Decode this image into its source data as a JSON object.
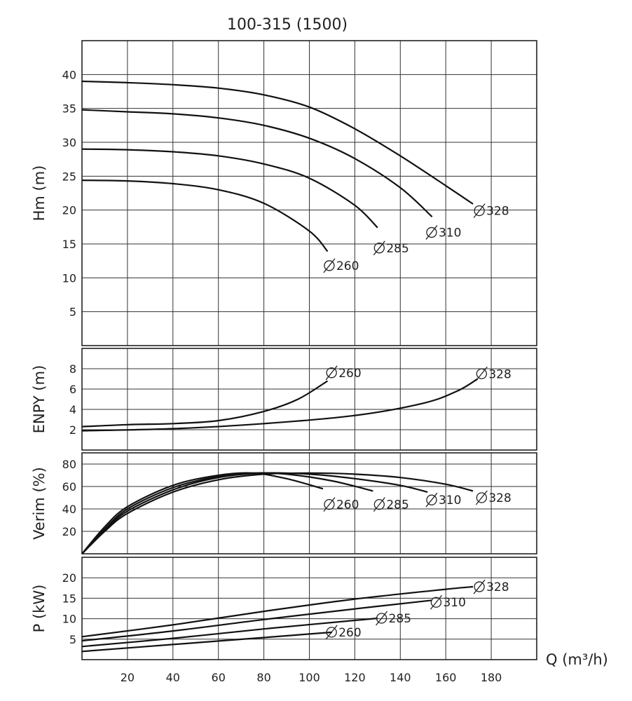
{
  "chart_data": {
    "title": "100-315 (1500)",
    "x_axis": {
      "label": "Q (m³/h)",
      "range": [
        0,
        200
      ],
      "ticks": [
        20,
        40,
        60,
        80,
        100,
        120,
        140,
        160,
        180
      ]
    },
    "panels": [
      {
        "id": "head",
        "type": "line",
        "ylabel": "Hm (m)",
        "ylim": [
          0,
          45
        ],
        "yticks": [
          5,
          10,
          15,
          20,
          25,
          30,
          35,
          40
        ],
        "series": [
          {
            "name": "Ø328",
            "points": [
              [
                0,
                39.0
              ],
              [
                20,
                38.8
              ],
              [
                40,
                38.5
              ],
              [
                60,
                38.0
              ],
              [
                80,
                37.0
              ],
              [
                100,
                35.2
              ],
              [
                120,
                32.0
              ],
              [
                140,
                28.0
              ],
              [
                160,
                23.6
              ],
              [
                172,
                20.9
              ]
            ]
          },
          {
            "name": "Ø310",
            "points": [
              [
                0,
                34.8
              ],
              [
                20,
                34.5
              ],
              [
                40,
                34.2
              ],
              [
                60,
                33.6
              ],
              [
                80,
                32.5
              ],
              [
                100,
                30.6
              ],
              [
                120,
                27.6
              ],
              [
                140,
                23.3
              ],
              [
                154,
                19.0
              ]
            ]
          },
          {
            "name": "Ø285",
            "points": [
              [
                0,
                29.0
              ],
              [
                20,
                28.9
              ],
              [
                40,
                28.6
              ],
              [
                60,
                28.0
              ],
              [
                80,
                26.8
              ],
              [
                100,
                24.7
              ],
              [
                120,
                20.7
              ],
              [
                130,
                17.4
              ]
            ]
          },
          {
            "name": "Ø260",
            "points": [
              [
                0,
                24.4
              ],
              [
                20,
                24.3
              ],
              [
                40,
                23.9
              ],
              [
                60,
                23.0
              ],
              [
                80,
                21.0
              ],
              [
                100,
                16.9
              ],
              [
                108,
                13.9
              ]
            ]
          }
        ],
        "labels": [
          {
            "text": "328",
            "x": 176,
            "y": 19.9
          },
          {
            "text": "310",
            "x": 155,
            "y": 16.7
          },
          {
            "text": "285",
            "x": 132,
            "y": 14.4
          },
          {
            "text": "260",
            "x": 110,
            "y": 11.8
          }
        ]
      },
      {
        "id": "npsh",
        "type": "line",
        "ylabel": "ENPY (m)",
        "ylim": [
          0,
          10
        ],
        "yticks": [
          2,
          4,
          6,
          8
        ],
        "series": [
          {
            "name": "Ø260",
            "points": [
              [
                0,
                2.3
              ],
              [
                20,
                2.5
              ],
              [
                40,
                2.6
              ],
              [
                60,
                2.9
              ],
              [
                80,
                3.8
              ],
              [
                95,
                5.0
              ],
              [
                108,
                6.8
              ]
            ]
          },
          {
            "name": "Ø328",
            "points": [
              [
                0,
                1.9
              ],
              [
                40,
                2.1
              ],
              [
                80,
                2.6
              ],
              [
                120,
                3.4
              ],
              [
                150,
                4.6
              ],
              [
                165,
                5.8
              ],
              [
                174,
                7.0
              ]
            ]
          }
        ],
        "labels": [
          {
            "text": "260",
            "x": 111,
            "y": 7.6
          },
          {
            "text": "328",
            "x": 177,
            "y": 7.5
          }
        ]
      },
      {
        "id": "efficiency",
        "type": "line",
        "ylabel": "Verim (%)",
        "ylim": [
          0,
          90
        ],
        "yticks": [
          20,
          40,
          60,
          80
        ],
        "series": [
          {
            "name": "Ø328",
            "points": [
              [
                0,
                0
              ],
              [
                10,
                20
              ],
              [
                20,
                36
              ],
              [
                40,
                55
              ],
              [
                60,
                66
              ],
              [
                80,
                71
              ],
              [
                100,
                72
              ],
              [
                120,
                71
              ],
              [
                140,
                68
              ],
              [
                160,
                62
              ],
              [
                172,
                56
              ]
            ]
          },
          {
            "name": "Ø310",
            "points": [
              [
                0,
                0
              ],
              [
                10,
                21
              ],
              [
                20,
                38
              ],
              [
                40,
                57
              ],
              [
                60,
                68
              ],
              [
                80,
                72
              ],
              [
                100,
                71
              ],
              [
                120,
                67
              ],
              [
                140,
                61
              ],
              [
                152,
                55
              ]
            ]
          },
          {
            "name": "Ø285",
            "points": [
              [
                0,
                0
              ],
              [
                10,
                22
              ],
              [
                20,
                40
              ],
              [
                40,
                59
              ],
              [
                60,
                69
              ],
              [
                75,
                72
              ],
              [
                90,
                71
              ],
              [
                110,
                65
              ],
              [
                128,
                56
              ]
            ]
          },
          {
            "name": "Ø260",
            "points": [
              [
                0,
                0
              ],
              [
                10,
                24
              ],
              [
                20,
                42
              ],
              [
                40,
                61
              ],
              [
                60,
                70
              ],
              [
                75,
                72
              ],
              [
                90,
                67
              ],
              [
                106,
                58
              ]
            ]
          }
        ],
        "labels": [
          {
            "text": "260",
            "x": 110,
            "y": 44
          },
          {
            "text": "285",
            "x": 132,
            "y": 44
          },
          {
            "text": "310",
            "x": 155,
            "y": 48
          },
          {
            "text": "328",
            "x": 177,
            "y": 50
          }
        ]
      },
      {
        "id": "power",
        "type": "line",
        "ylabel": "P (kW)",
        "ylim": [
          0,
          25
        ],
        "yticks": [
          5,
          10,
          15,
          20
        ],
        "series": [
          {
            "name": "Ø328",
            "points": [
              [
                0,
                5.6
              ],
              [
                40,
                8.5
              ],
              [
                80,
                11.8
              ],
              [
                120,
                14.8
              ],
              [
                160,
                17.2
              ],
              [
                172,
                17.8
              ]
            ]
          },
          {
            "name": "Ø310",
            "points": [
              [
                0,
                4.6
              ],
              [
                40,
                7.0
              ],
              [
                80,
                9.8
              ],
              [
                120,
                12.4
              ],
              [
                154,
                14.5
              ]
            ]
          },
          {
            "name": "Ø285",
            "points": [
              [
                0,
                3.2
              ],
              [
                40,
                5.2
              ],
              [
                80,
                7.5
              ],
              [
                130,
                10.1
              ]
            ]
          },
          {
            "name": "Ø260",
            "points": [
              [
                0,
                2.0
              ],
              [
                40,
                3.7
              ],
              [
                80,
                5.4
              ],
              [
                110,
                6.7
              ]
            ]
          }
        ],
        "labels": [
          {
            "text": "328",
            "x": 176,
            "y": 17.8
          },
          {
            "text": "310",
            "x": 157,
            "y": 14.0
          },
          {
            "text": "285",
            "x": 133,
            "y": 10.1
          },
          {
            "text": "260",
            "x": 111,
            "y": 6.7
          }
        ]
      }
    ]
  }
}
